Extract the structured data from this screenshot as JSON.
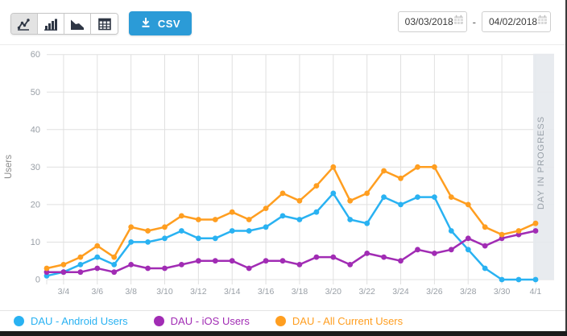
{
  "toolbar": {
    "chart_types": [
      {
        "label": "line-chart",
        "selected": true
      },
      {
        "label": "bar-chart",
        "selected": false
      },
      {
        "label": "area-chart",
        "selected": false
      },
      {
        "label": "table-view",
        "selected": false
      }
    ],
    "csv_label": "CSV",
    "date_from": "03/03/2018",
    "date_separator": "-",
    "date_to": "04/02/2018"
  },
  "chart_data": {
    "type": "line",
    "ylabel": "Users",
    "ylim": [
      0,
      60
    ],
    "y_ticks": [
      0,
      10,
      20,
      30,
      40,
      50,
      60
    ],
    "grid": true,
    "legend_position": "bottom",
    "day_in_progress_label": "DAY IN PROGRESS",
    "x": [
      "3/3",
      "3/4",
      "3/5",
      "3/6",
      "3/7",
      "3/8",
      "3/9",
      "3/10",
      "3/11",
      "3/12",
      "3/13",
      "3/14",
      "3/15",
      "3/16",
      "3/17",
      "3/18",
      "3/19",
      "3/20",
      "3/21",
      "3/22",
      "3/23",
      "3/24",
      "3/25",
      "3/26",
      "3/27",
      "3/28",
      "3/29",
      "3/30",
      "3/31",
      "4/1"
    ],
    "x_tick_labels": [
      "3/4",
      "3/6",
      "3/8",
      "3/10",
      "3/12",
      "3/14",
      "3/16",
      "3/18",
      "3/20",
      "3/22",
      "3/24",
      "3/26",
      "3/28",
      "3/30",
      "4/1"
    ],
    "series": [
      {
        "name": "DAU - Android Users",
        "color": "#29b2f2",
        "values": [
          1,
          2,
          4,
          6,
          4,
          10,
          10,
          11,
          13,
          11,
          11,
          13,
          13,
          14,
          17,
          16,
          18,
          23,
          16,
          15,
          22,
          20,
          22,
          22,
          13,
          8,
          3,
          0,
          0,
          0
        ]
      },
      {
        "name": "DAU - iOS Users",
        "color": "#a12cb4",
        "values": [
          2,
          2,
          2,
          3,
          2,
          4,
          3,
          3,
          4,
          5,
          5,
          5,
          3,
          5,
          5,
          4,
          6,
          6,
          4,
          7,
          6,
          5,
          8,
          7,
          8,
          11,
          9,
          11,
          12,
          13
        ]
      },
      {
        "name": "DAU - All Current Users",
        "color": "#ff9e20",
        "values": [
          3,
          4,
          6,
          9,
          6,
          14,
          13,
          14,
          17,
          16,
          16,
          18,
          16,
          19,
          23,
          21,
          25,
          30,
          21,
          23,
          29,
          27,
          30,
          30,
          22,
          20,
          14,
          12,
          13,
          15
        ]
      }
    ],
    "colors": {
      "band": "#e6e9ed",
      "grid": "#e0e0e0",
      "axis_text": "#999fa6",
      "band_text": "#98a0a8"
    }
  }
}
